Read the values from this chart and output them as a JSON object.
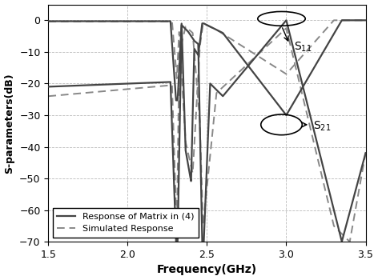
{
  "title": "",
  "xlabel": "Frequency(GHz)",
  "ylabel": "S-parameters(dB)",
  "xlim": [
    1.5,
    3.5
  ],
  "ylim": [
    -70,
    5
  ],
  "yticks": [
    0,
    -10,
    -20,
    -30,
    -40,
    -50,
    -60,
    -70
  ],
  "xticks": [
    1.5,
    2.0,
    2.5,
    3.0,
    3.5
  ],
  "grid_color": "#bbbbbb",
  "line_color_solid": "#444444",
  "line_color_dashed": "#888888",
  "legend_solid": "Response of Matrix in (4)",
  "legend_dashed": "Simulated Response"
}
